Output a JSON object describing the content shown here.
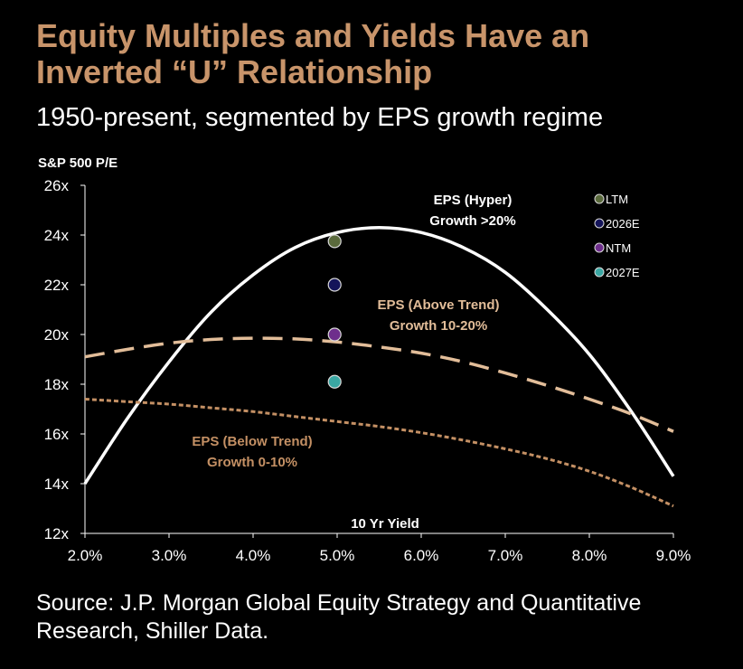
{
  "title": "Equity Multiples and Yields Have an Inverted “U” Relationship",
  "subtitle": "1950-present, segmented by EPS growth regime",
  "source": "Source: J.P. Morgan Global Equity Strategy and Quantitative Research, Shiller Data.",
  "colors": {
    "title": "#c8946a",
    "hyper_curve": "#ffffff",
    "above_trend_curve": "#e2bd99",
    "below_trend_curve": "#c49064",
    "ltm": "#5a6a3c",
    "e2026": "#14145a",
    "ntm": "#6e2e8c",
    "e2027": "#3aa7a3"
  },
  "chart_data": {
    "type": "line",
    "ylabel": "S&P 500 P/E",
    "xlabel": "10 Yr Yield",
    "xlim": [
      2.0,
      9.0
    ],
    "ylim": [
      12,
      26
    ],
    "x_ticks": [
      "2.0%",
      "3.0%",
      "4.0%",
      "5.0%",
      "6.0%",
      "7.0%",
      "8.0%",
      "9.0%"
    ],
    "y_ticks": [
      "12x",
      "14x",
      "16x",
      "18x",
      "20x",
      "22x",
      "24x",
      "26x"
    ],
    "series": [
      {
        "name": "EPS (Hyper) Growth >20%",
        "label_line1": "EPS (Hyper)",
        "label_line2": "Growth >20%",
        "style": "solid",
        "color": "#ffffff",
        "x": [
          2.0,
          2.5,
          3.0,
          3.5,
          4.0,
          4.5,
          5.0,
          5.5,
          6.0,
          6.5,
          7.0,
          7.5,
          8.0,
          8.5,
          9.0
        ],
        "y": [
          14.0,
          16.6,
          18.9,
          20.9,
          22.4,
          23.5,
          24.1,
          24.3,
          24.1,
          23.5,
          22.5,
          21.0,
          19.2,
          16.9,
          14.3
        ]
      },
      {
        "name": "EPS (Above Trend) Growth 10-20%",
        "label_line1": "EPS (Above Trend)",
        "label_line2": "Growth  10-20%",
        "style": "dashed",
        "color": "#e2bd99",
        "x": [
          2.0,
          2.5,
          3.0,
          3.5,
          4.0,
          4.5,
          5.0,
          5.5,
          6.0,
          6.5,
          7.0,
          7.5,
          8.0,
          8.5,
          9.0
        ],
        "y": [
          19.1,
          19.4,
          19.65,
          19.8,
          19.85,
          19.82,
          19.7,
          19.5,
          19.25,
          18.9,
          18.45,
          17.95,
          17.4,
          16.8,
          16.1
        ]
      },
      {
        "name": "EPS (Below Trend) Growth 0-10%",
        "label_line1": "EPS (Below Trend)",
        "label_line2": "Growth 0-10%",
        "style": "dotted",
        "color": "#c49064",
        "x": [
          2.0,
          2.5,
          3.0,
          3.5,
          4.0,
          4.5,
          5.0,
          5.5,
          6.0,
          6.5,
          7.0,
          7.5,
          8.0,
          8.5,
          9.0
        ],
        "y": [
          17.4,
          17.3,
          17.2,
          17.05,
          16.9,
          16.7,
          16.5,
          16.3,
          16.05,
          15.75,
          15.4,
          15.0,
          14.5,
          13.85,
          13.1
        ]
      }
    ],
    "points": [
      {
        "name": "LTM",
        "x": 4.97,
        "y": 23.75,
        "color": "#5a6a3c"
      },
      {
        "name": "2026E",
        "x": 4.97,
        "y": 22.0,
        "color": "#14145a"
      },
      {
        "name": "NTM",
        "x": 4.97,
        "y": 20.0,
        "color": "#6e2e8c"
      },
      {
        "name": "2027E",
        "x": 4.97,
        "y": 18.1,
        "color": "#3aa7a3"
      }
    ],
    "legend": {
      "position": "top-right",
      "entries": [
        "LTM",
        "2026E",
        "NTM",
        "2027E"
      ]
    },
    "grid": false
  }
}
